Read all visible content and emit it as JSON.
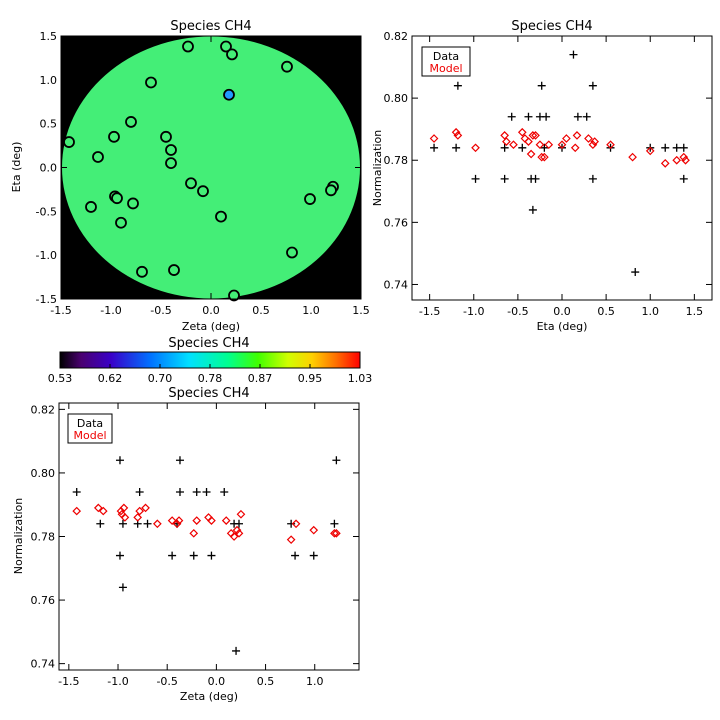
{
  "chart_data": [
    {
      "type": "scatter",
      "title": "Species CH4",
      "xlabel": "Zeta (deg)",
      "ylabel": "Eta (deg)",
      "xlim": [
        -1.5,
        1.5
      ],
      "ylim": [
        -1.5,
        1.5
      ],
      "xticks": [
        "-1.5",
        "-1.0",
        "-0.5",
        "0.0",
        "0.5",
        "1.0",
        "1.5"
      ],
      "yticks": [
        "-1.5",
        "-1.0",
        "-0.5",
        "0.0",
        "0.5",
        "1.0",
        "1.5"
      ],
      "background": "#000000",
      "disk_color": "#44ee77",
      "marker_edge": "#000000",
      "highlight_color": "#2299ff",
      "points": [
        {
          "x": -1.42,
          "y": 0.29
        },
        {
          "x": -1.13,
          "y": 0.12
        },
        {
          "x": -0.97,
          "y": 0.35
        },
        {
          "x": -0.8,
          "y": 0.52
        },
        {
          "x": -0.6,
          "y": 0.97
        },
        {
          "x": -0.45,
          "y": 0.35
        },
        {
          "x": -0.4,
          "y": 0.2
        },
        {
          "x": -0.4,
          "y": 0.05
        },
        {
          "x": -0.23,
          "y": 1.38
        },
        {
          "x": -0.2,
          "y": -0.18
        },
        {
          "x": 0.15,
          "y": 1.38
        },
        {
          "x": 0.21,
          "y": 1.29
        },
        {
          "x": 0.18,
          "y": 0.83
        },
        {
          "x": 0.76,
          "y": 1.15
        },
        {
          "x": -0.08,
          "y": -0.27
        },
        {
          "x": 0.1,
          "y": -0.56
        },
        {
          "x": -1.2,
          "y": -0.45
        },
        {
          "x": -0.96,
          "y": -0.33
        },
        {
          "x": -0.94,
          "y": -0.35
        },
        {
          "x": -0.9,
          "y": -0.63
        },
        {
          "x": -0.78,
          "y": -0.41
        },
        {
          "x": -0.37,
          "y": -1.17
        },
        {
          "x": -0.69,
          "y": -1.19
        },
        {
          "x": 0.23,
          "y": -1.46
        },
        {
          "x": 0.81,
          "y": -0.97
        },
        {
          "x": 0.99,
          "y": -0.36
        },
        {
          "x": 1.22,
          "y": -0.22
        },
        {
          "x": 1.2,
          "y": -0.26
        }
      ]
    },
    {
      "type": "scatter",
      "title": "Species CH4",
      "xlabel": "Eta (deg)",
      "ylabel": "Normalization",
      "xlim": [
        -1.7,
        1.7
      ],
      "ylim": [
        0.735,
        0.82
      ],
      "xticks": [
        -1.5,
        -1.0,
        -0.5,
        0.0,
        0.5,
        1.0,
        1.5
      ],
      "yticks": [
        0.74,
        0.76,
        0.78,
        0.8,
        0.82
      ],
      "legend": {
        "position": "top-left",
        "entries": [
          {
            "label": "Data",
            "color": "#000000",
            "marker": "plus"
          },
          {
            "label": "Model",
            "color": "#ee0000",
            "marker": "diamond"
          }
        ]
      },
      "series": [
        {
          "name": "Data",
          "marker": "plus",
          "color": "#000000",
          "points": [
            [
              -1.45,
              0.784
            ],
            [
              -1.2,
              0.784
            ],
            [
              -1.18,
              0.804
            ],
            [
              -0.98,
              0.774
            ],
            [
              -0.65,
              0.774
            ],
            [
              -0.65,
              0.784
            ],
            [
              -0.57,
              0.794
            ],
            [
              -0.45,
              0.784
            ],
            [
              -0.38,
              0.794
            ],
            [
              -0.35,
              0.774
            ],
            [
              -0.33,
              0.764
            ],
            [
              -0.3,
              0.774
            ],
            [
              -0.25,
              0.794
            ],
            [
              -0.23,
              0.804
            ],
            [
              -0.2,
              0.784
            ],
            [
              -0.18,
              0.794
            ],
            [
              0.0,
              0.784
            ],
            [
              0.13,
              0.814
            ],
            [
              0.18,
              0.794
            ],
            [
              0.28,
              0.794
            ],
            [
              0.35,
              0.804
            ],
            [
              0.35,
              0.774
            ],
            [
              0.55,
              0.784
            ],
            [
              0.83,
              0.744
            ],
            [
              1.0,
              0.784
            ],
            [
              1.17,
              0.784
            ],
            [
              1.3,
              0.784
            ],
            [
              1.38,
              0.784
            ],
            [
              1.38,
              0.774
            ]
          ]
        },
        {
          "name": "Model",
          "marker": "diamond",
          "color": "#ee0000",
          "points": [
            [
              -1.45,
              0.787
            ],
            [
              -1.2,
              0.789
            ],
            [
              -1.18,
              0.788
            ],
            [
              -0.98,
              0.784
            ],
            [
              -0.65,
              0.788
            ],
            [
              -0.63,
              0.786
            ],
            [
              -0.55,
              0.785
            ],
            [
              -0.45,
              0.789
            ],
            [
              -0.42,
              0.787
            ],
            [
              -0.38,
              0.786
            ],
            [
              -0.35,
              0.782
            ],
            [
              -0.33,
              0.788
            ],
            [
              -0.3,
              0.788
            ],
            [
              -0.25,
              0.785
            ],
            [
              -0.23,
              0.781
            ],
            [
              -0.2,
              0.781
            ],
            [
              -0.15,
              0.785
            ],
            [
              0.0,
              0.785
            ],
            [
              0.05,
              0.787
            ],
            [
              0.15,
              0.784
            ],
            [
              0.17,
              0.788
            ],
            [
              0.3,
              0.787
            ],
            [
              0.35,
              0.785
            ],
            [
              0.37,
              0.786
            ],
            [
              0.55,
              0.785
            ],
            [
              0.8,
              0.781
            ],
            [
              1.0,
              0.783
            ],
            [
              1.17,
              0.779
            ],
            [
              1.3,
              0.78
            ],
            [
              1.38,
              0.781
            ],
            [
              1.4,
              0.78
            ]
          ]
        }
      ]
    },
    {
      "type": "scatter",
      "title": "Species CH4",
      "xlabel": "Zeta (deg)",
      "ylabel": "Normalization",
      "xlim": [
        -1.6,
        1.45
      ],
      "ylim": [
        0.738,
        0.822
      ],
      "xticks": [
        -1.5,
        -1.0,
        -0.5,
        0.0,
        0.5,
        1.0
      ],
      "yticks": [
        0.74,
        0.76,
        0.78,
        0.8,
        0.82
      ],
      "legend": {
        "position": "top-left",
        "entries": [
          {
            "label": "Data",
            "color": "#000000",
            "marker": "plus"
          },
          {
            "label": "Model",
            "color": "#ee0000",
            "marker": "diamond"
          }
        ]
      },
      "series": [
        {
          "name": "Data",
          "marker": "plus",
          "color": "#000000",
          "points": [
            [
              -1.42,
              0.794
            ],
            [
              -1.18,
              0.784
            ],
            [
              -1.13,
              0.814
            ],
            [
              -0.98,
              0.804
            ],
            [
              -0.98,
              0.774
            ],
            [
              -0.95,
              0.764
            ],
            [
              -0.95,
              0.784
            ],
            [
              -0.78,
              0.794
            ],
            [
              -0.8,
              0.784
            ],
            [
              -0.7,
              0.784
            ],
            [
              -0.45,
              0.774
            ],
            [
              -0.4,
              0.784
            ],
            [
              -0.37,
              0.794
            ],
            [
              -0.37,
              0.804
            ],
            [
              -0.23,
              0.774
            ],
            [
              -0.2,
              0.794
            ],
            [
              -0.1,
              0.794
            ],
            [
              -0.05,
              0.774
            ],
            [
              0.08,
              0.794
            ],
            [
              0.18,
              0.784
            ],
            [
              0.2,
              0.744
            ],
            [
              0.23,
              0.784
            ],
            [
              0.76,
              0.784
            ],
            [
              0.8,
              0.774
            ],
            [
              0.99,
              0.774
            ],
            [
              1.2,
              0.784
            ],
            [
              1.22,
              0.804
            ]
          ]
        },
        {
          "name": "Model",
          "marker": "diamond",
          "color": "#ee0000",
          "points": [
            [
              -1.42,
              0.788
            ],
            [
              -1.2,
              0.789
            ],
            [
              -1.15,
              0.788
            ],
            [
              -0.97,
              0.788
            ],
            [
              -0.96,
              0.787
            ],
            [
              -0.94,
              0.789
            ],
            [
              -0.93,
              0.786
            ],
            [
              -0.8,
              0.786
            ],
            [
              -0.78,
              0.788
            ],
            [
              -0.72,
              0.789
            ],
            [
              -0.6,
              0.784
            ],
            [
              -0.45,
              0.785
            ],
            [
              -0.4,
              0.784
            ],
            [
              -0.38,
              0.785
            ],
            [
              -0.23,
              0.781
            ],
            [
              -0.2,
              0.785
            ],
            [
              -0.08,
              0.786
            ],
            [
              -0.05,
              0.785
            ],
            [
              0.1,
              0.785
            ],
            [
              0.15,
              0.781
            ],
            [
              0.18,
              0.78
            ],
            [
              0.21,
              0.782
            ],
            [
              0.23,
              0.781
            ],
            [
              0.25,
              0.787
            ],
            [
              0.76,
              0.779
            ],
            [
              0.81,
              0.784
            ],
            [
              0.99,
              0.782
            ],
            [
              1.2,
              0.781
            ],
            [
              1.22,
              0.781
            ]
          ]
        }
      ]
    }
  ],
  "colorbar": {
    "title": "Species CH4",
    "ticks": [
      "0.53",
      "0.62",
      "0.70",
      "0.78",
      "0.87",
      "0.95",
      "1.03"
    ],
    "range": [
      0.53,
      1.03
    ]
  }
}
